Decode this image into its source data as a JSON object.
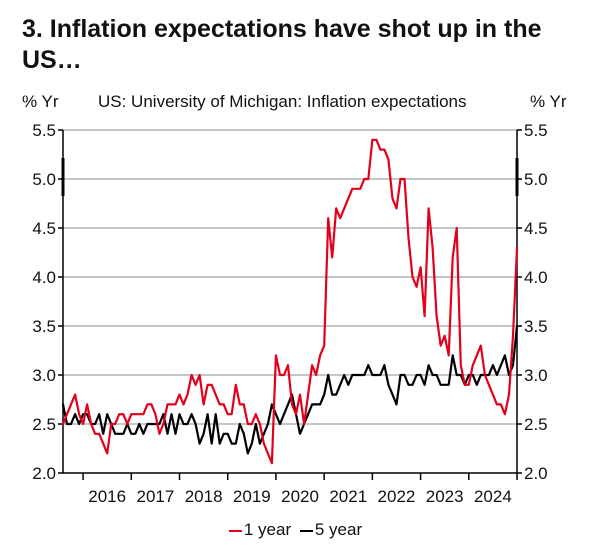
{
  "page": {
    "title": "3. Inflation expectations have shot up in the US…"
  },
  "chart_data": {
    "type": "line",
    "title": "US: University of Michigan: Inflation expectations",
    "y_unit_left": "% Yr",
    "y_unit_right": "% Yr",
    "ylim": [
      2.0,
      5.5
    ],
    "yticks": [
      "5.5",
      "5.0",
      "4.5",
      "4.0",
      "3.5",
      "3.0",
      "2.5",
      "2.0"
    ],
    "ytick_values": [
      5.5,
      5.0,
      4.5,
      4.0,
      3.5,
      3.0,
      2.5,
      2.0
    ],
    "xticks": [
      "2016",
      "2017",
      "2018",
      "2019",
      "2020",
      "2021",
      "2022",
      "2023",
      "2024"
    ],
    "x_start": "2015-08",
    "x_end": "2025-01",
    "grid": "horizontal",
    "legend_position": "bottom",
    "series": [
      {
        "name": "1 year",
        "color": "#e3001b",
        "start": "2015-08",
        "values": [
          2.5,
          2.6,
          2.7,
          2.8,
          2.6,
          2.5,
          2.7,
          2.5,
          2.4,
          2.4,
          2.3,
          2.2,
          2.5,
          2.5,
          2.6,
          2.6,
          2.5,
          2.6,
          2.6,
          2.6,
          2.6,
          2.7,
          2.7,
          2.6,
          2.4,
          2.5,
          2.7,
          2.7,
          2.7,
          2.8,
          2.7,
          2.8,
          3.0,
          2.9,
          3.0,
          2.7,
          2.9,
          2.9,
          2.8,
          2.7,
          2.7,
          2.6,
          2.6,
          2.9,
          2.7,
          2.7,
          2.5,
          2.5,
          2.6,
          2.5,
          2.3,
          2.2,
          2.1,
          3.2,
          3.0,
          3.0,
          3.1,
          2.7,
          2.6,
          2.8,
          2.5,
          2.8,
          3.1,
          3.0,
          3.2,
          3.3,
          4.6,
          4.2,
          4.7,
          4.6,
          4.7,
          4.8,
          4.9,
          4.9,
          4.9,
          5.0,
          5.0,
          5.4,
          5.4,
          5.3,
          5.3,
          5.2,
          4.8,
          4.7,
          5.0,
          5.0,
          4.4,
          4.0,
          3.9,
          4.1,
          3.6,
          4.7,
          4.3,
          3.6,
          3.3,
          3.4,
          3.2,
          4.2,
          4.5,
          3.1,
          2.9,
          2.9,
          3.1,
          3.2,
          3.3,
          3.0,
          2.9,
          2.8,
          2.7,
          2.7,
          2.6,
          2.8,
          3.4,
          4.3
        ]
      },
      {
        "name": "5 year",
        "color": "#000000",
        "start": "2015-08",
        "values": [
          2.7,
          2.5,
          2.5,
          2.6,
          2.5,
          2.6,
          2.6,
          2.5,
          2.5,
          2.6,
          2.4,
          2.6,
          2.5,
          2.4,
          2.4,
          2.4,
          2.5,
          2.4,
          2.4,
          2.5,
          2.4,
          2.5,
          2.5,
          2.5,
          2.5,
          2.6,
          2.4,
          2.6,
          2.4,
          2.6,
          2.5,
          2.5,
          2.6,
          2.5,
          2.3,
          2.4,
          2.6,
          2.3,
          2.6,
          2.3,
          2.4,
          2.4,
          2.3,
          2.3,
          2.5,
          2.4,
          2.2,
          2.3,
          2.5,
          2.3,
          2.4,
          2.5,
          2.7,
          2.6,
          2.5,
          2.6,
          2.7,
          2.8,
          2.6,
          2.4,
          2.5,
          2.6,
          2.7,
          2.7,
          2.7,
          2.8,
          3.0,
          2.8,
          2.8,
          2.9,
          3.0,
          2.9,
          3.0,
          3.0,
          3.0,
          3.0,
          3.1,
          3.0,
          3.0,
          3.0,
          3.1,
          2.9,
          2.8,
          2.7,
          3.0,
          3.0,
          2.9,
          2.9,
          3.0,
          3.0,
          2.9,
          3.1,
          3.0,
          3.0,
          2.9,
          2.9,
          2.9,
          3.2,
          3.0,
          3.0,
          2.9,
          3.0,
          3.0,
          2.9,
          3.0,
          3.0,
          3.0,
          3.1,
          3.0,
          3.1,
          3.2,
          3.0,
          3.1,
          3.5
        ]
      }
    ]
  }
}
